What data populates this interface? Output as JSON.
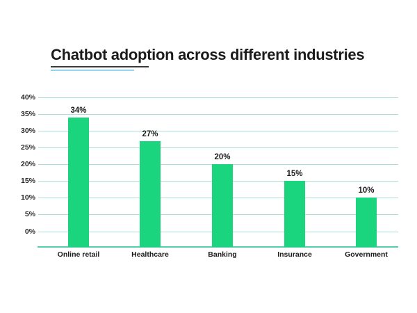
{
  "header": {
    "title": "Chatbot adoption across different industries"
  },
  "colors": {
    "bar": "#1ad57e",
    "gridline": "#a9dfd8",
    "baseline": "#52cfac",
    "underline_dark": "#3a3a3a",
    "underline_accent": "#8fd9ea",
    "text": "#1b1b1b",
    "tick_text": "#2b2b2b"
  },
  "chart_data": {
    "type": "bar",
    "title": "Chatbot adoption across different industries",
    "categories": [
      "Online retail",
      "Healthcare",
      "Banking",
      "Insurance",
      "Government"
    ],
    "values": [
      34,
      27,
      20,
      15,
      10
    ],
    "data_labels": [
      "34%",
      "27%",
      "20%",
      "15%",
      "10%"
    ],
    "y_ticks": [
      0,
      5,
      10,
      15,
      20,
      25,
      30,
      35,
      40
    ],
    "y_tick_labels": [
      "0%",
      "5%",
      "10%",
      "15%",
      "20%",
      "25%",
      "30%",
      "35%",
      "40%"
    ],
    "ylim": [
      0,
      40
    ],
    "xlabel": "",
    "ylabel": "",
    "grid": "horizontal",
    "legend": "none",
    "bar_color": "#1ad57e"
  }
}
